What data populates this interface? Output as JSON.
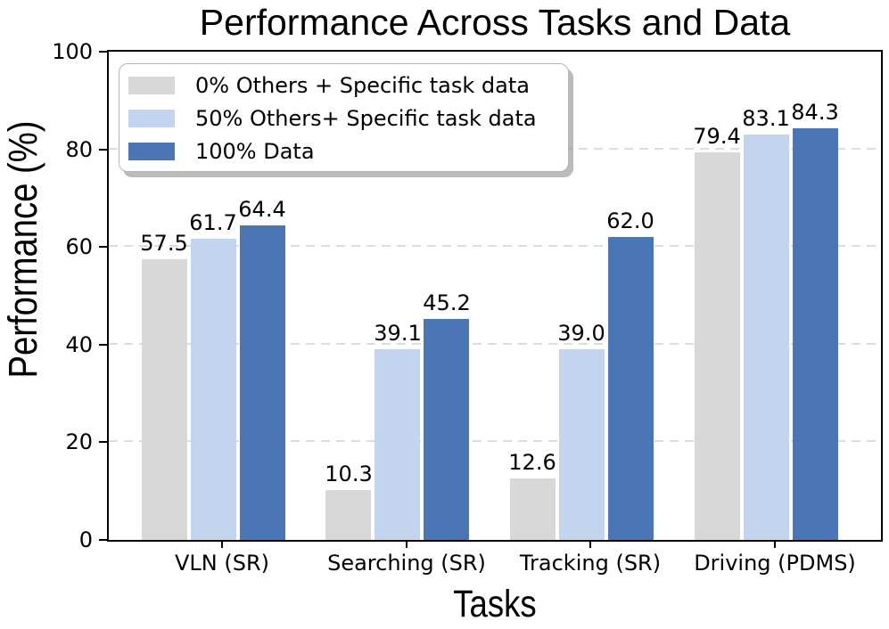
{
  "chart_data": {
    "type": "bar",
    "title": "Performance Across Tasks and Data",
    "xlabel": "Tasks",
    "ylabel": "Performance (%)",
    "categories": [
      "VLN (SR)",
      "Searching (SR)",
      "Tracking (SR)",
      "Driving (PDMS)"
    ],
    "series": [
      {
        "name": "0% Others + Specific task data",
        "color": "#d8d8d8",
        "values": [
          57.5,
          10.3,
          12.6,
          79.4
        ]
      },
      {
        "name": "50% Others+ Specific task data",
        "color": "#c3d4ee",
        "values": [
          61.7,
          39.1,
          39.0,
          83.1
        ]
      },
      {
        "name": "100% Data",
        "color": "#4a76b8",
        "values": [
          64.4,
          45.2,
          62.0,
          84.3
        ]
      }
    ],
    "ylim": [
      0,
      100
    ],
    "yticks": [
      0,
      20,
      40,
      60,
      80,
      100
    ],
    "grid": {
      "axis": "y",
      "style": "dashed",
      "color": "#dcdcdc"
    },
    "legend": {
      "position": "upper-left",
      "border_color": "#b5b5b5",
      "background": "#ffffff"
    },
    "value_labels": {
      "decimals": 1
    },
    "background": "#ffffff",
    "spine_color": "#000000"
  }
}
